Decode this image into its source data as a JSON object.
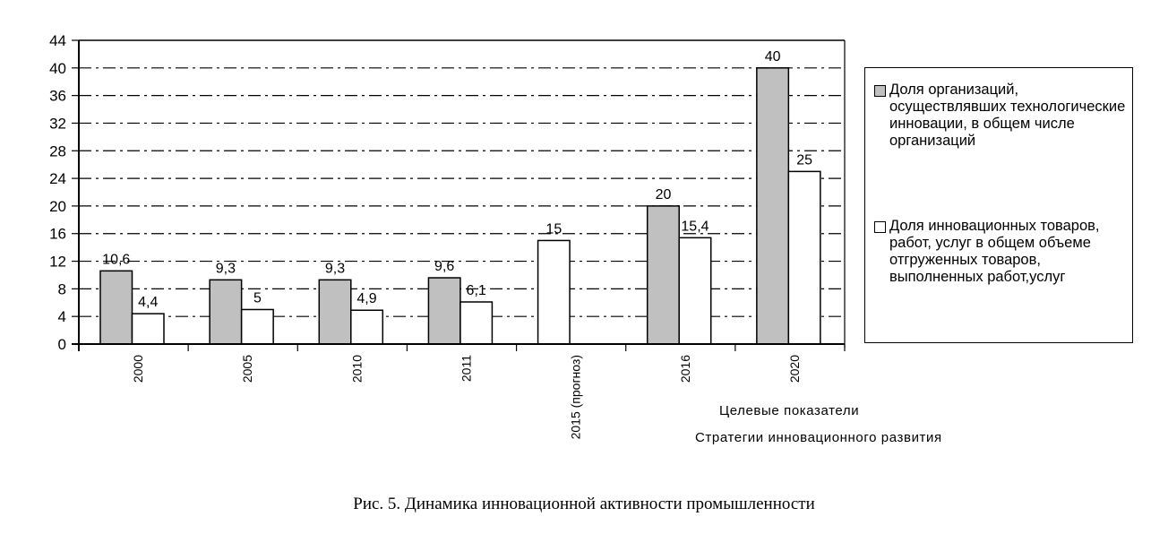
{
  "chart_data": {
    "type": "bar",
    "title": "",
    "xlabel": "Целевые показатели Стратегии инновационного развития",
    "xlabel_lines": [
      "Целевые показатели",
      "Стратегии инновационного развития"
    ],
    "ylabel": "",
    "ylim": [
      0,
      44
    ],
    "yticks": [
      0,
      4,
      8,
      12,
      16,
      20,
      24,
      28,
      32,
      36,
      40,
      44
    ],
    "grid": true,
    "legend_position": "right",
    "categories": [
      "2000",
      "2005",
      "2010",
      "2011",
      "2015 (прогноз)",
      "2016",
      "2020"
    ],
    "series": [
      {
        "name": "Доля организаций, осуществлявших технологические инновации, в общем числе организаций",
        "color": "#c0c0c0",
        "values": [
          10.6,
          9.3,
          9.3,
          9.6,
          null,
          20,
          40
        ],
        "labels": [
          "10,6",
          "9,3",
          "9,3",
          "9,6",
          "",
          "20",
          "40"
        ]
      },
      {
        "name": "Доля инновационных товаров, работ, услуг в общем объеме отгруженных товаров, выполненных работ,услуг",
        "color": "#ffffff",
        "values": [
          4.4,
          5,
          4.9,
          6.1,
          15,
          15.4,
          25
        ],
        "labels": [
          "4,4",
          "5",
          "4,9",
          "6,1",
          "15",
          "15,4",
          "25"
        ]
      }
    ]
  },
  "caption": "Рис. 5. Динамика инновационной активности промышленности"
}
